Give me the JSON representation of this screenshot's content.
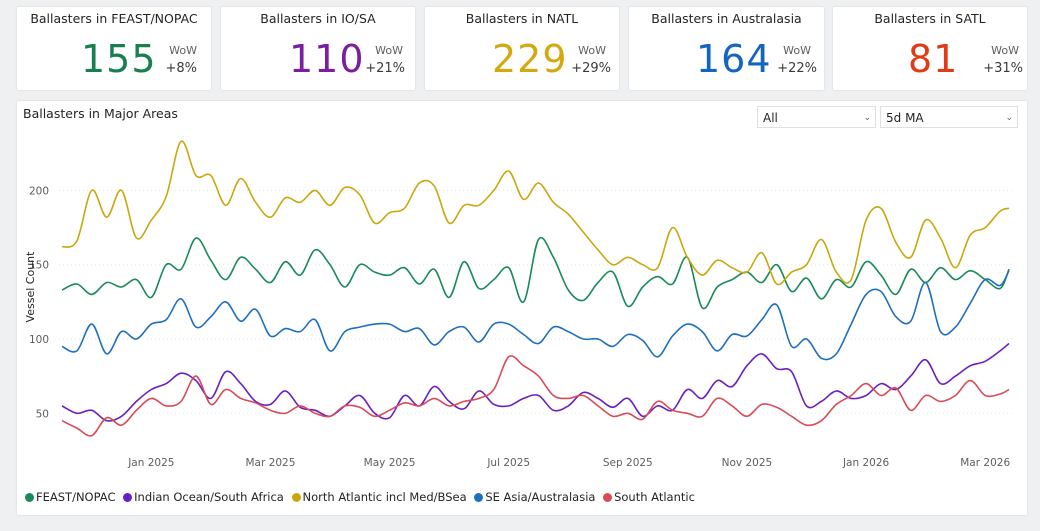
{
  "kpis": [
    {
      "title": "Ballasters in FEAST/NOPAC",
      "value": "155",
      "wow_label": "WoW",
      "wow": "+8%",
      "color": "#1a7f50"
    },
    {
      "title": "Ballasters in IO/SA",
      "value": "110",
      "wow_label": "WoW",
      "wow": "+21%",
      "color": "#7b1fa2"
    },
    {
      "title": "Ballasters in NATL",
      "value": "229",
      "wow_label": "WoW",
      "wow": "+29%",
      "color": "#d4a90f"
    },
    {
      "title": "Ballasters in Australasia",
      "value": "164",
      "wow_label": "WoW",
      "wow": "+22%",
      "color": "#1565c0"
    },
    {
      "title": "Ballasters in SATL",
      "value": "81",
      "wow_label": "WoW",
      "wow": "+31%",
      "color": "#e03a17"
    }
  ],
  "filters": {
    "region": "All",
    "smoothing": "5d MA"
  },
  "chart_data": {
    "type": "line",
    "title": "Ballasters in Major Areas",
    "ylabel": "Vessel Count",
    "xlabel": "",
    "ylim": [
      30,
      240
    ],
    "yticks": [
      50,
      100,
      150,
      200
    ],
    "x_ticks": [
      "Jan 2025",
      "Mar 2025",
      "May 2025",
      "Jul 2025",
      "Sep 2025",
      "Nov 2025",
      "Jan 2026",
      "Mar 2026"
    ],
    "x_tick_positions": [
      1.0,
      3.0,
      5.0,
      7.0,
      9.0,
      11.0,
      13.0,
      15.0
    ],
    "x_range": [
      -0.55,
      15.45
    ],
    "grid": true,
    "legend_position": "bottom-left",
    "x": [
      -0.5,
      -0.25,
      0.0,
      0.25,
      0.5,
      0.75,
      1.0,
      1.25,
      1.5,
      1.75,
      2.0,
      2.25,
      2.5,
      2.75,
      3.0,
      3.25,
      3.5,
      3.75,
      4.0,
      4.25,
      4.5,
      4.75,
      5.0,
      5.25,
      5.5,
      5.75,
      6.0,
      6.25,
      6.5,
      6.75,
      7.0,
      7.25,
      7.5,
      7.75,
      8.0,
      8.25,
      8.5,
      8.75,
      9.0,
      9.25,
      9.5,
      9.75,
      10.0,
      10.25,
      10.5,
      10.75,
      11.0,
      11.25,
      11.5,
      11.75,
      12.0,
      12.25,
      12.5,
      12.75,
      13.0,
      13.25,
      13.5,
      13.75,
      14.0,
      14.25,
      14.5,
      14.75,
      15.0,
      15.25,
      15.4
    ],
    "series": [
      {
        "name": "FEAST/NOPAC",
        "color": "#1a8a5a",
        "values": [
          133,
          137,
          130,
          138,
          135,
          140,
          128,
          150,
          147,
          168,
          153,
          140,
          155,
          147,
          138,
          152,
          143,
          160,
          150,
          135,
          150,
          145,
          143,
          148,
          137,
          147,
          128,
          152,
          134,
          140,
          148,
          125,
          167,
          155,
          133,
          126,
          138,
          145,
          122,
          135,
          142,
          137,
          155,
          121,
          135,
          140,
          145,
          138,
          150,
          132,
          141,
          127,
          140,
          135,
          152,
          143,
          130,
          147,
          138,
          148,
          140,
          146,
          140,
          134,
          147
        ]
      },
      {
        "name": "Indian Ocean/South Africa",
        "color": "#6a1fc2",
        "values": [
          55,
          50,
          52,
          45,
          48,
          58,
          66,
          70,
          77,
          72,
          60,
          78,
          70,
          58,
          56,
          65,
          54,
          52,
          48,
          55,
          62,
          50,
          47,
          62,
          55,
          68,
          58,
          53,
          65,
          56,
          55,
          60,
          62,
          52,
          55,
          64,
          60,
          54,
          60,
          48,
          55,
          52,
          66,
          60,
          72,
          68,
          82,
          90,
          80,
          78,
          55,
          58,
          65,
          60,
          62,
          70,
          66,
          75,
          86,
          70,
          75,
          82,
          85,
          92,
          97
        ]
      },
      {
        "name": "North Atlantic incl Med/BSea",
        "color": "#c9a80f",
        "values": [
          162,
          166,
          200,
          182,
          200,
          168,
          180,
          196,
          233,
          210,
          210,
          190,
          208,
          192,
          182,
          195,
          192,
          200,
          190,
          202,
          197,
          178,
          185,
          188,
          205,
          203,
          178,
          190,
          190,
          200,
          213,
          194,
          205,
          192,
          184,
          172,
          160,
          150,
          155,
          150,
          148,
          175,
          155,
          143,
          153,
          148,
          145,
          158,
          137,
          145,
          150,
          167,
          145,
          140,
          180,
          188,
          165,
          155,
          180,
          168,
          148,
          170,
          175,
          186,
          188
        ]
      },
      {
        "name": "SE Asia/Australasia",
        "color": "#1f6fbf",
        "values": [
          95,
          92,
          110,
          90,
          105,
          100,
          110,
          113,
          127,
          108,
          115,
          125,
          112,
          120,
          102,
          107,
          105,
          113,
          92,
          105,
          108,
          110,
          110,
          105,
          107,
          96,
          105,
          108,
          98,
          110,
          110,
          103,
          97,
          108,
          105,
          100,
          100,
          95,
          103,
          99,
          88,
          102,
          110,
          105,
          92,
          103,
          102,
          113,
          123,
          95,
          100,
          87,
          90,
          110,
          130,
          132,
          115,
          112,
          138,
          105,
          108,
          124,
          140,
          136,
          146
        ]
      },
      {
        "name": "South Atlantic",
        "color": "#d94b57",
        "values": [
          45,
          40,
          35,
          47,
          42,
          52,
          60,
          55,
          58,
          75,
          56,
          66,
          60,
          57,
          52,
          50,
          55,
          50,
          48,
          55,
          54,
          48,
          52,
          57,
          55,
          60,
          55,
          58,
          60,
          66,
          88,
          82,
          75,
          62,
          60,
          62,
          55,
          48,
          50,
          46,
          58,
          52,
          50,
          48,
          60,
          55,
          48,
          56,
          54,
          48,
          42,
          45,
          56,
          62,
          70,
          62,
          67,
          52,
          62,
          58,
          62,
          72,
          62,
          63,
          66
        ]
      }
    ]
  }
}
